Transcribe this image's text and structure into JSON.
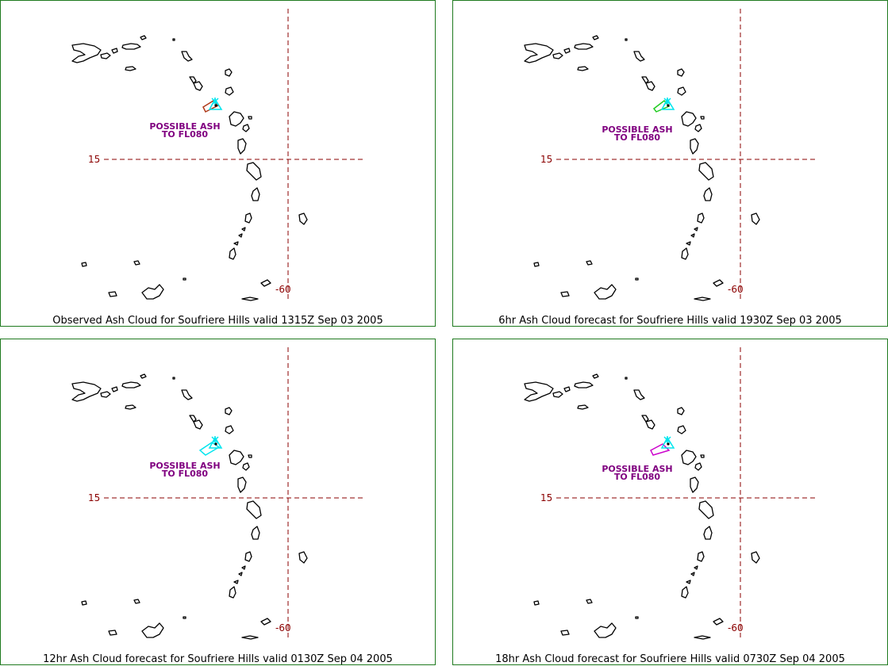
{
  "lat_label": "15",
  "lon_label": "-60",
  "ash_label_line1": "POSSIBLE ASH",
  "ash_label_line2": "TO FL080",
  "colors": {
    "border": "#1f7a1f",
    "gridline": "#8b0000",
    "coastline": "#000000",
    "ash_label": "#800080",
    "volcano_marker": "#00e5ee"
  },
  "panels": [
    {
      "caption": "Observed Ash Cloud for Soufriere  Hills valid 1315Z Sep 03 2005",
      "ash_color": "#b03a1a"
    },
    {
      "caption": "6hr Ash Cloud forecast for Soufriere  Hills valid 1930Z Sep 03 2005",
      "ash_color": "#22cc22"
    },
    {
      "caption": "12hr Ash Cloud forecast for Soufriere  Hills valid 0130Z Sep 04 2005",
      "ash_color": "#00e5ee"
    },
    {
      "caption": "18hr Ash Cloud forecast for Soufriere  Hills valid 0730Z Sep 04 2005",
      "ash_color": "#cc00cc"
    }
  ]
}
